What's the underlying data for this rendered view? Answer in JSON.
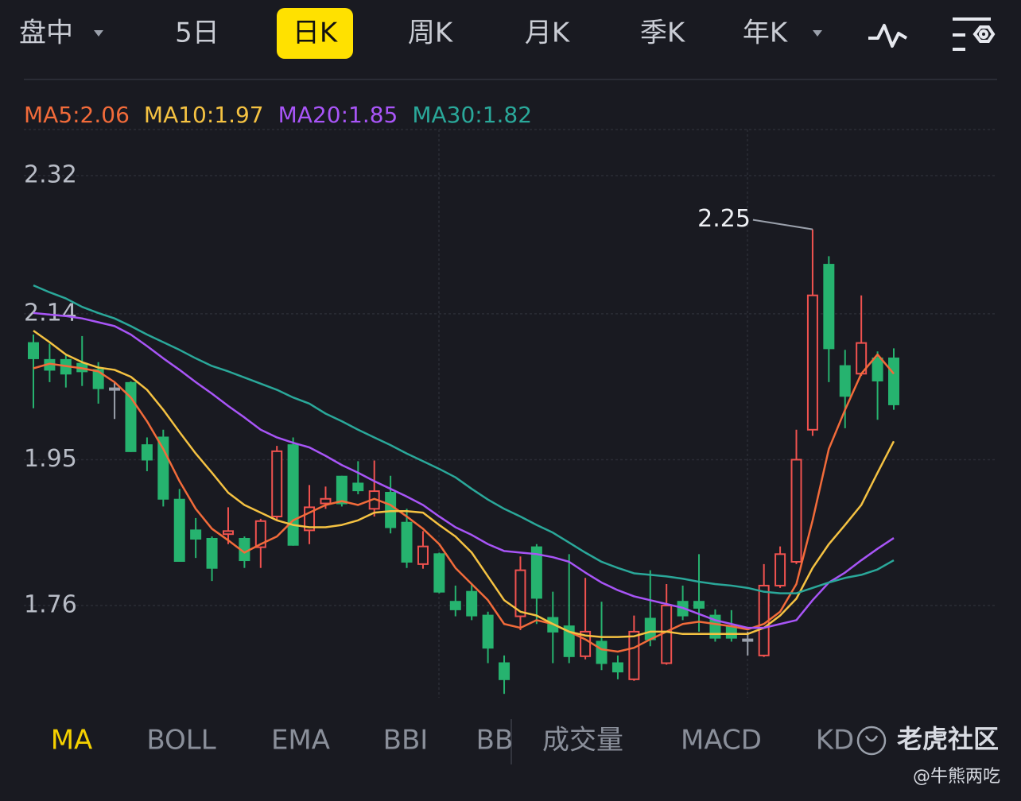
{
  "tabs": [
    {
      "label": "盘中",
      "dropdown": true
    },
    {
      "label": "5日"
    },
    {
      "label": "日K"
    },
    {
      "label": "周K"
    },
    {
      "label": "月K"
    },
    {
      "label": "季K"
    },
    {
      "label": "年K",
      "dropdown": true
    }
  ],
  "selected_tab": 2,
  "chart_data": {
    "type": "candlestick",
    "series": [
      {
        "name": "MA5:2.06",
        "color": "#f26b3a",
        "values": [
          2.069,
          2.075,
          2.072,
          2.069,
          2.065,
          2.051,
          2.031,
          2.0,
          1.964,
          1.922,
          1.886,
          1.86,
          1.845,
          1.829,
          1.84,
          1.85,
          1.871,
          1.881,
          1.891,
          1.896,
          1.891,
          1.899,
          1.891,
          1.876,
          1.86,
          1.84,
          1.809,
          1.788,
          1.767,
          1.736,
          1.731,
          1.741,
          1.736,
          1.726,
          1.716,
          1.703,
          1.7,
          1.705,
          1.716,
          1.726,
          1.736,
          1.739,
          1.736,
          1.733,
          1.729,
          1.736,
          1.752,
          1.788,
          1.871,
          1.964,
          2.015,
          2.062,
          2.087,
          2.062
        ]
      },
      {
        "name": "MA10:1.97",
        "color": "#f5c242",
        "values": [
          2.118,
          2.103,
          2.087,
          2.077,
          2.07,
          2.067,
          2.058,
          2.041,
          2.015,
          1.986,
          1.958,
          1.933,
          1.907,
          1.891,
          1.881,
          1.871,
          1.865,
          1.862,
          1.862,
          1.865,
          1.871,
          1.881,
          1.883,
          1.883,
          1.881,
          1.865,
          1.85,
          1.829,
          1.798,
          1.767,
          1.752,
          1.747,
          1.736,
          1.726,
          1.721,
          1.719,
          1.719,
          1.72,
          1.726,
          1.726,
          1.723,
          1.723,
          1.723,
          1.723,
          1.723,
          1.731,
          1.747,
          1.769,
          1.809,
          1.84,
          1.865,
          1.891,
          1.933,
          1.974
        ]
      },
      {
        "name": "MA20:1.85",
        "color": "#a855f7",
        "values": [
          2.141,
          2.139,
          2.137,
          2.134,
          2.129,
          2.124,
          2.113,
          2.098,
          2.082,
          2.067,
          2.051,
          2.036,
          2.02,
          2.005,
          1.989,
          1.979,
          1.972,
          1.966,
          1.955,
          1.943,
          1.933,
          1.922,
          1.912,
          1.902,
          1.891,
          1.876,
          1.862,
          1.852,
          1.84,
          1.831,
          1.829,
          1.827,
          1.823,
          1.817,
          1.803,
          1.79,
          1.78,
          1.772,
          1.767,
          1.762,
          1.757,
          1.749,
          1.741,
          1.736,
          1.731,
          1.731,
          1.736,
          1.741,
          1.767,
          1.79,
          1.803,
          1.819,
          1.834,
          1.848
        ]
      },
      {
        "name": "MA30:1.82",
        "color": "#2aa89a",
        "values": [
          2.177,
          2.168,
          2.16,
          2.149,
          2.141,
          2.134,
          2.124,
          2.113,
          2.103,
          2.093,
          2.082,
          2.072,
          2.065,
          2.057,
          2.049,
          2.041,
          2.031,
          2.023,
          2.01,
          2.0,
          1.989,
          1.979,
          1.969,
          1.958,
          1.948,
          1.938,
          1.927,
          1.912,
          1.898,
          1.886,
          1.876,
          1.865,
          1.855,
          1.842,
          1.829,
          1.817,
          1.809,
          1.802,
          1.8,
          1.798,
          1.795,
          1.791,
          1.788,
          1.786,
          1.783,
          1.778,
          1.776,
          1.776,
          1.783,
          1.79,
          1.796,
          1.8,
          1.807,
          1.819
        ]
      }
    ],
    "open": [
      2.102,
      2.08,
      2.08,
      2.075,
      2.067,
      2.043,
      2.05,
      1.969,
      1.979,
      1.898,
      1.858,
      1.847,
      1.853,
      1.847,
      1.836,
      1.876,
      1.969,
      1.858,
      1.893,
      1.928,
      1.919,
      1.886,
      1.907,
      1.868,
      1.814,
      1.827,
      1.765,
      1.778,
      1.747,
      1.685,
      1.746,
      1.836,
      1.744,
      1.733,
      1.694,
      1.713,
      1.685,
      1.664,
      1.743,
      1.685,
      1.765,
      1.765,
      1.747,
      1.733,
      1.716,
      1.695,
      1.786,
      1.817,
      1.989,
      2.204,
      2.072,
      2.062,
      2.082,
      2.082
    ],
    "high": [
      2.113,
      2.101,
      2.087,
      2.111,
      2.077,
      2.05,
      2.052,
      1.979,
      1.989,
      1.912,
      1.874,
      1.85,
      1.888,
      1.85,
      1.873,
      1.968,
      1.979,
      1.917,
      1.915,
      1.929,
      1.948,
      1.949,
      1.929,
      1.886,
      1.857,
      1.829,
      1.786,
      1.788,
      1.752,
      1.695,
      1.824,
      1.84,
      1.778,
      1.827,
      1.796,
      1.765,
      1.695,
      1.747,
      1.806,
      1.788,
      1.786,
      1.827,
      1.755,
      1.754,
      1.726,
      1.814,
      1.837,
      1.989,
      2.25,
      2.215,
      2.093,
      2.164,
      2.091,
      2.095
    ],
    "low": [
      2.017,
      2.051,
      2.044,
      2.046,
      2.023,
      2.003,
      1.96,
      1.935,
      1.889,
      1.817,
      1.822,
      1.792,
      1.84,
      1.809,
      1.809,
      1.871,
      1.838,
      1.84,
      1.886,
      1.889,
      1.905,
      1.876,
      1.854,
      1.809,
      1.808,
      1.776,
      1.746,
      1.741,
      1.685,
      1.645,
      1.728,
      1.736,
      1.685,
      1.685,
      1.69,
      1.676,
      1.664,
      1.662,
      1.707,
      1.683,
      1.741,
      1.726,
      1.713,
      1.713,
      1.695,
      1.693,
      1.783,
      1.814,
      1.981,
      2.051,
      1.991,
      2.059,
      2.002,
      2.015
    ],
    "close": [
      2.082,
      2.067,
      2.062,
      2.065,
      2.043,
      2.043,
      1.961,
      1.95,
      1.899,
      1.818,
      1.847,
      1.809,
      1.857,
      1.819,
      1.87,
      1.961,
      1.839,
      1.888,
      1.899,
      1.893,
      1.91,
      1.909,
      1.862,
      1.817,
      1.837,
      1.778,
      1.755,
      1.747,
      1.705,
      1.664,
      1.806,
      1.77,
      1.726,
      1.694,
      1.726,
      1.685,
      1.674,
      1.726,
      1.716,
      1.76,
      1.747,
      1.757,
      1.718,
      1.718,
      1.716,
      1.786,
      1.827,
      1.95,
      2.164,
      2.095,
      2.033,
      2.102,
      2.053,
      2.022
    ],
    "up_color": "#f0524f",
    "down_color": "#26b36f",
    "flat_color": "#9aa0ab",
    "ylim": [
      1.64,
      2.38
    ],
    "yticks": [
      2.32,
      2.14,
      1.95,
      1.76
    ],
    "grid": true,
    "annotation_index": 48
  },
  "indicator_tabs": [
    "MA",
    "BOLL",
    "EMA",
    "BBI",
    "BB",
    "成交量",
    "MACD",
    "KD"
  ],
  "selected_indicator": 0,
  "watermark": "老虎社区",
  "credit": "@牛熊两吃"
}
